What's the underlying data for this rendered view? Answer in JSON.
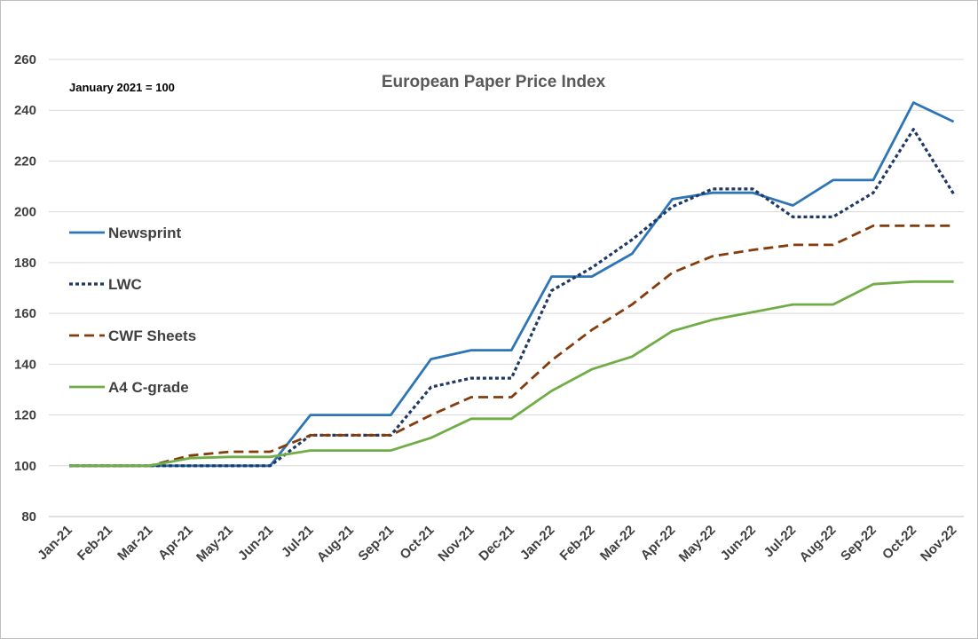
{
  "chart_data": {
    "type": "line",
    "title": "European Paper Price Index",
    "subtitle": "January 2021 = 100",
    "xlabel": "",
    "ylabel": "",
    "ylim": [
      80,
      260
    ],
    "yticks": [
      80,
      100,
      120,
      140,
      160,
      180,
      200,
      220,
      240,
      260
    ],
    "grid": "horizontal",
    "legend_position": "left",
    "categories": [
      "Jan-21",
      "Feb-21",
      "Mar-21",
      "Apr-21",
      "May-21",
      "Jun-21",
      "Jul-21",
      "Aug-21",
      "Sep-21",
      "Oct-21",
      "Nov-21",
      "Dec-21",
      "Jan-22",
      "Feb-22",
      "Mar-22",
      "Apr-22",
      "May-22",
      "Jun-22",
      "Jul-22",
      "Aug-22",
      "Sep-22",
      "Oct-22",
      "Nov-22"
    ],
    "series": [
      {
        "name": "Newsprint",
        "color": "#2e75b6",
        "dash": "solid",
        "values": [
          100,
          100,
          100,
          100,
          100,
          100,
          120,
          120,
          120,
          142,
          145.5,
          145.5,
          174.5,
          174.5,
          183.5,
          205,
          207.5,
          207.5,
          202.5,
          212.5,
          212.5,
          243,
          235.5
        ]
      },
      {
        "name": "LWC",
        "color": "#1f3864",
        "dash": "dotted",
        "values": [
          100,
          100,
          100,
          100,
          100,
          100,
          112,
          112,
          112,
          131,
          134.5,
          134.5,
          169,
          178,
          189,
          202,
          209,
          209,
          198,
          198,
          207.5,
          232.5,
          207
        ]
      },
      {
        "name": "CWF Sheets",
        "color": "#843c0c",
        "dash": "dashed",
        "values": [
          100,
          100,
          100,
          104,
          105.5,
          105.5,
          112,
          112,
          112,
          120,
          127,
          127,
          141.5,
          153.5,
          163.5,
          176,
          182.5,
          185,
          187,
          187,
          194.5,
          194.5,
          194.5
        ]
      },
      {
        "name": "A4 C-grade",
        "color": "#70ad47",
        "dash": "solid",
        "values": [
          100,
          100,
          100,
          103,
          103.5,
          103.5,
          106,
          106,
          106,
          111,
          118.5,
          118.5,
          129.5,
          138,
          143,
          153,
          157.5,
          160.5,
          163.5,
          163.5,
          171.5,
          172.5,
          172.5
        ]
      }
    ]
  }
}
